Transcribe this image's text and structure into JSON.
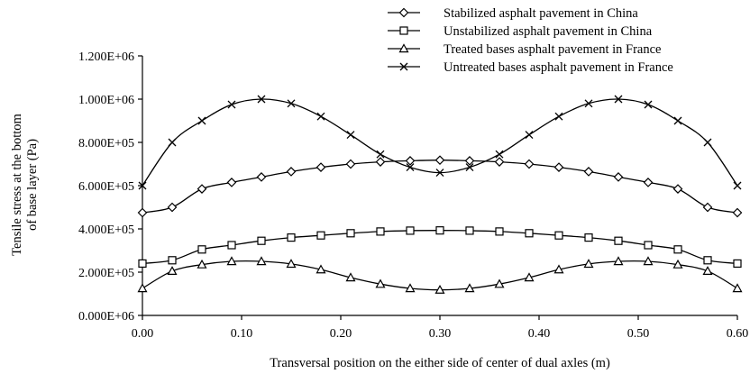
{
  "chart_data": {
    "type": "line",
    "title": "",
    "xlabel": "Transversal position on the either side of center of dual axles (m)",
    "ylabel_lines": [
      "Tensile stress at the bottom",
      "of base layer (Pa)"
    ],
    "xlim": [
      0,
      0.6
    ],
    "ylim": [
      0,
      1200000
    ],
    "x_ticks": [
      0,
      0.1,
      0.2,
      0.3,
      0.4,
      0.5,
      0.6
    ],
    "x_tick_labels": [
      "0.00",
      "0.10",
      "0.20",
      "0.30",
      "0.40",
      "0.50",
      "0.60"
    ],
    "y_ticks": [
      0,
      200000,
      400000,
      600000,
      800000,
      1000000,
      1200000
    ],
    "y_tick_labels": [
      "0.000E+06",
      "2.000E+05",
      "4.000E+05",
      "6.000E+05",
      "8.000E+05",
      "1.000E+06",
      "1.200E+06"
    ],
    "grid": false,
    "legend_position": "top-right",
    "line_color": "#000000",
    "x": [
      0,
      0.03,
      0.06,
      0.09,
      0.12,
      0.15,
      0.18,
      0.21,
      0.24,
      0.27,
      0.3,
      0.33,
      0.36,
      0.39,
      0.42,
      0.45,
      0.48,
      0.51,
      0.54,
      0.57,
      0.6
    ],
    "series": [
      {
        "name": "Stabilized asphalt pavement in China",
        "marker": "diamond",
        "values": [
          475000,
          500000,
          585000,
          615000,
          640000,
          665000,
          685000,
          700000,
          710000,
          715000,
          718000,
          715000,
          710000,
          700000,
          685000,
          665000,
          640000,
          615000,
          585000,
          500000,
          475000
        ]
      },
      {
        "name": "Unstabilized asphalt pavement in China",
        "marker": "square",
        "values": [
          240000,
          255000,
          305000,
          325000,
          345000,
          360000,
          370000,
          380000,
          388000,
          392000,
          393000,
          392000,
          388000,
          380000,
          370000,
          360000,
          345000,
          325000,
          305000,
          255000,
          240000
        ]
      },
      {
        "name": "Treated bases asphalt pavement in France",
        "marker": "triangle",
        "values": [
          125000,
          205000,
          235000,
          250000,
          250000,
          238000,
          212000,
          175000,
          145000,
          125000,
          118000,
          125000,
          145000,
          175000,
          212000,
          238000,
          250000,
          250000,
          235000,
          205000,
          125000
        ]
      },
      {
        "name": "Untreated bases asphalt pavement in France",
        "marker": "cross",
        "values": [
          600000,
          800000,
          900000,
          975000,
          1000000,
          980000,
          920000,
          835000,
          745000,
          685000,
          660000,
          685000,
          745000,
          835000,
          920000,
          980000,
          1000000,
          975000,
          900000,
          800000,
          600000
        ]
      }
    ]
  }
}
